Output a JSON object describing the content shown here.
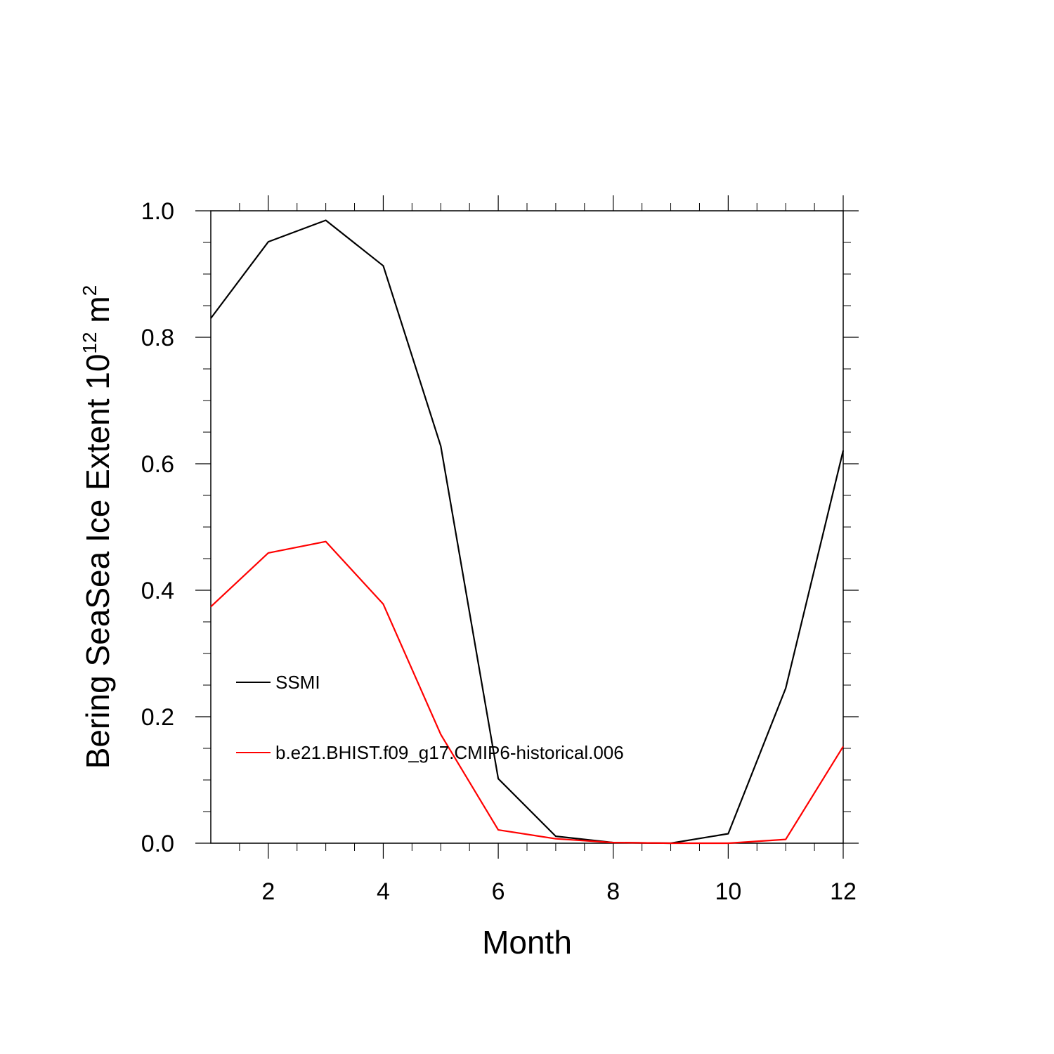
{
  "chart_data": {
    "type": "line",
    "xlabel": "Month",
    "ylabel": {
      "prefix": "Bering SeaSea Ice Extent 10",
      "exponent": "12",
      "unit": " m",
      "unit_exponent": "2"
    },
    "xlim": [
      1,
      12
    ],
    "ylim": [
      0,
      1.0
    ],
    "x_ticks": [
      2,
      4,
      6,
      8,
      10,
      12
    ],
    "x_tick_labels": [
      "2",
      "4",
      "6",
      "8",
      "10",
      "12"
    ],
    "y_ticks": [
      0,
      0.2,
      0.4,
      0.6,
      0.8,
      1.0
    ],
    "y_tick_labels": [
      "0.0",
      "0.2",
      "0.4",
      "0.6",
      "0.8",
      "1.0"
    ],
    "grid": false,
    "legend_position": "lower-left",
    "x": [
      1,
      2,
      3,
      4,
      5,
      6,
      7,
      8,
      9,
      10,
      11,
      12
    ],
    "series": [
      {
        "name": "SSMI",
        "color": "#000000",
        "values": [
          0.83,
          0.951,
          0.985,
          0.913,
          0.628,
          0.102,
          0.011,
          0.001,
          0.0,
          0.015,
          0.245,
          0.621
        ]
      },
      {
        "name": "b.e21.BHIST.f09_g17.CMIP6-historical.006",
        "color": "#ff0000",
        "values": [
          0.374,
          0.459,
          0.477,
          0.378,
          0.172,
          0.021,
          0.007,
          0.001,
          0.0,
          0.0,
          0.006,
          0.153
        ]
      }
    ]
  }
}
